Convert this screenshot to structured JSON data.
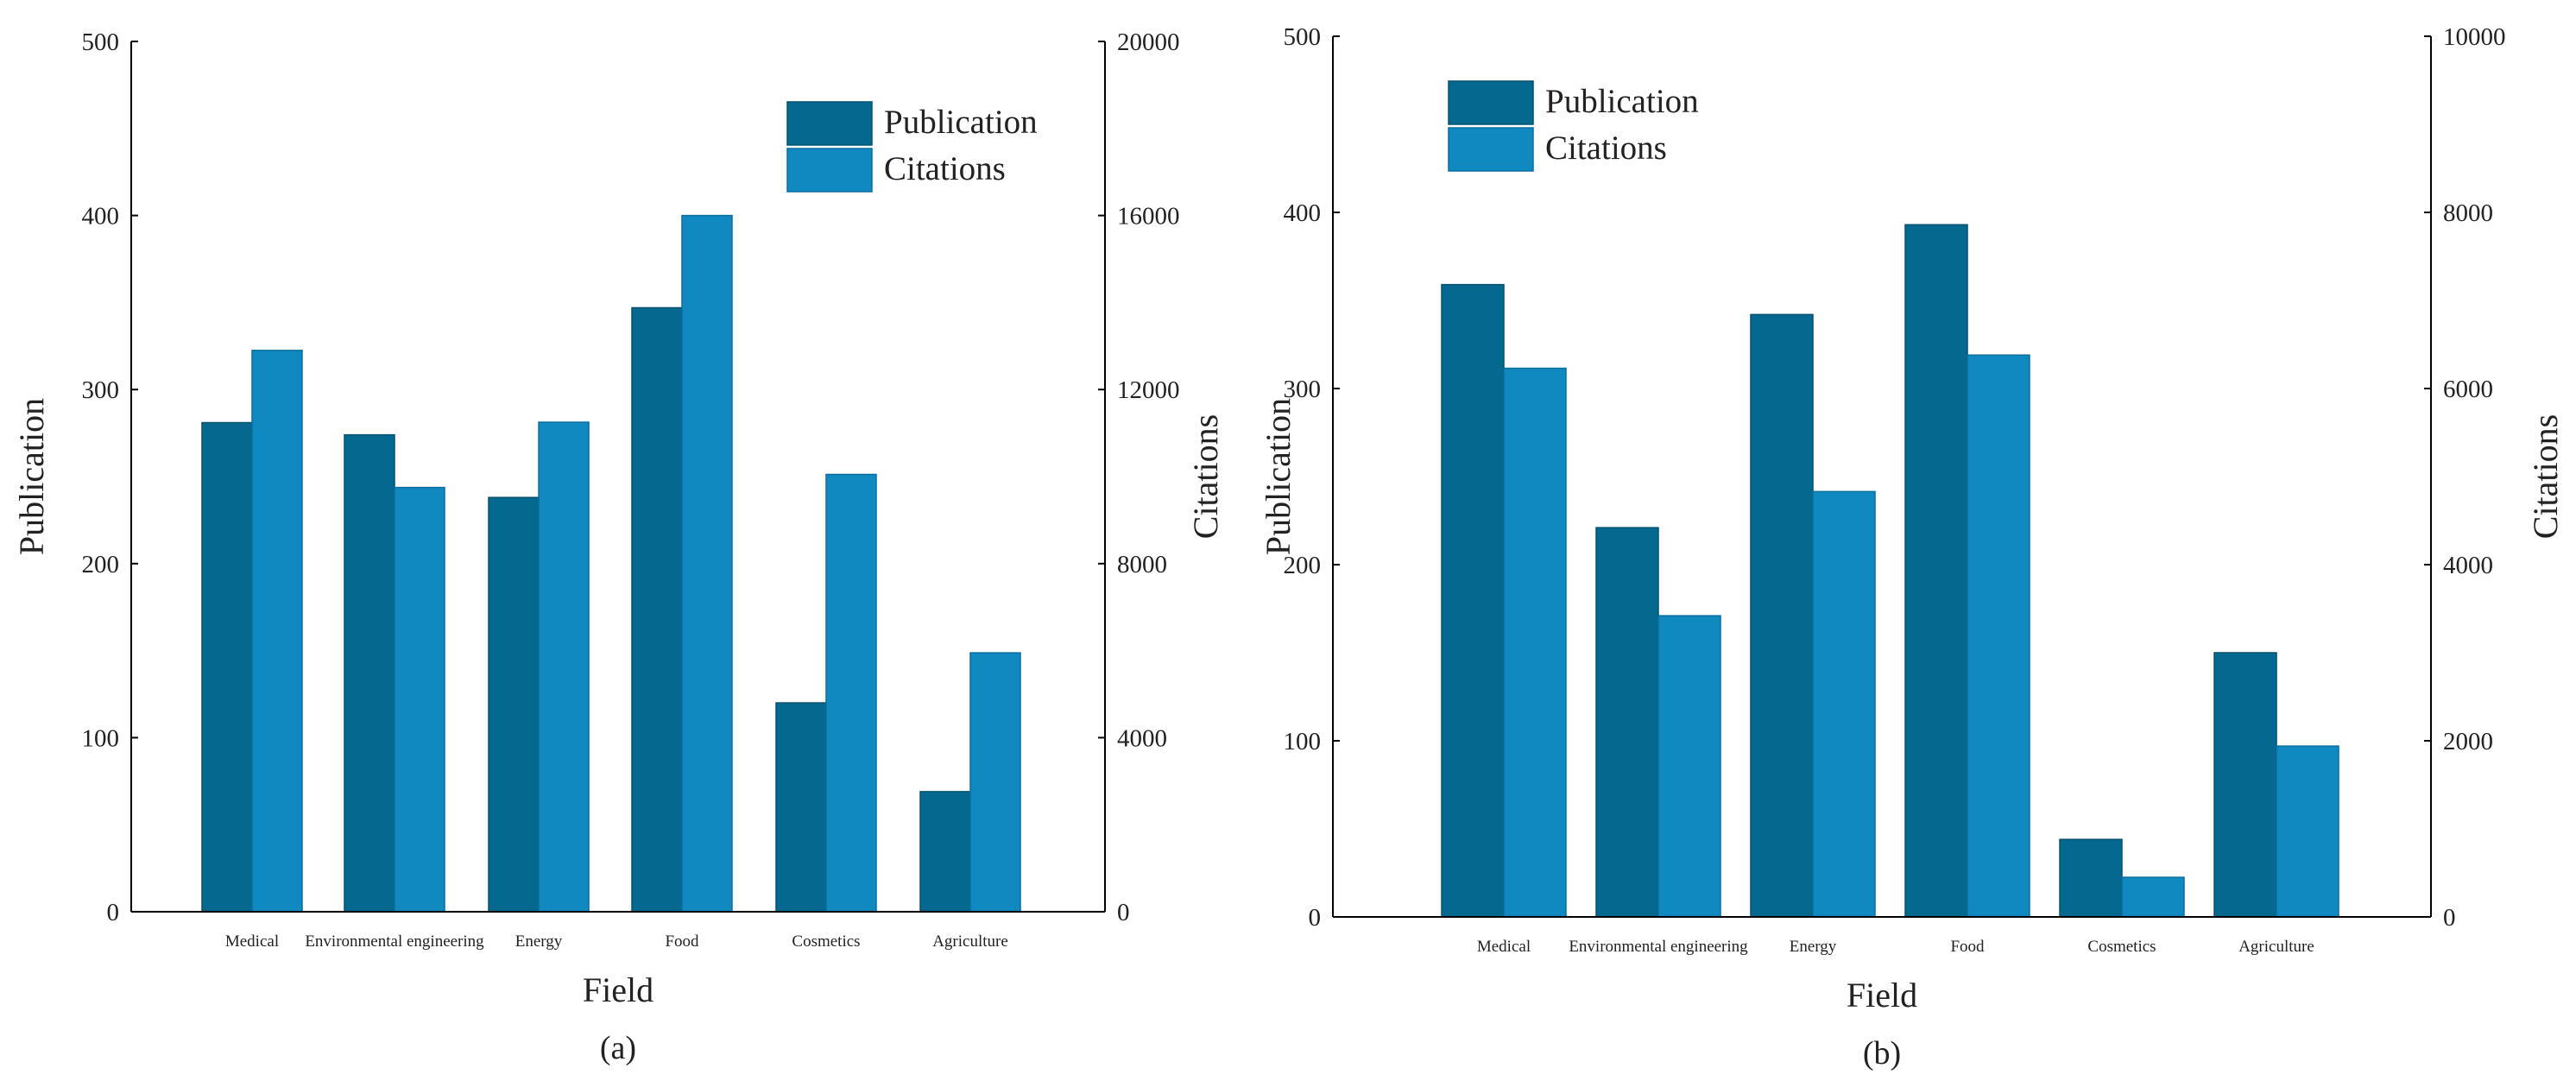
{
  "colors": {
    "publication": "#05688F",
    "citations": "#1088C0",
    "publication_edge": "#045070",
    "citations_edge": "#0B6E9E"
  },
  "chart_data": [
    {
      "type": "bar",
      "caption": "(a)",
      "categories": [
        "Medical",
        "Environmental engineering",
        "Energy",
        "Food",
        "Cosmetics",
        "Agriculture"
      ],
      "xlabel": "Field",
      "ylabel": "Publication",
      "y2label": "Citations",
      "ylim": [
        0,
        500
      ],
      "y2lim": [
        0,
        20000
      ],
      "yticks": [
        "0",
        "100",
        "200",
        "300",
        "400",
        "500"
      ],
      "y2ticks": [
        "0",
        "4000",
        "8000",
        "12000",
        "16000",
        "20000"
      ],
      "legend_position": "top-right",
      "grid": false,
      "series": [
        {
          "name": "Publication",
          "axis": "left",
          "values": [
            281,
            274,
            238,
            347,
            120,
            69
          ]
        },
        {
          "name": "Citations",
          "axis": "right",
          "values": [
            12900,
            9750,
            11250,
            16000,
            10050,
            5950
          ]
        }
      ]
    },
    {
      "type": "bar",
      "caption": "(b)",
      "categories": [
        "Medical",
        "Environmental engineering",
        "Energy",
        "Food",
        "Cosmetics",
        "Agriculture"
      ],
      "xlabel": "Field",
      "ylabel": "Publication",
      "y2label": "Citations",
      "ylim": [
        0,
        500
      ],
      "y2lim": [
        0,
        10000
      ],
      "yticks": [
        "0",
        "100",
        "200",
        "300",
        "400",
        "500"
      ],
      "y2ticks": [
        "0",
        "2000",
        "4000",
        "6000",
        "8000",
        "10000"
      ],
      "legend_position": "top-left",
      "grid": false,
      "series": [
        {
          "name": "Publication",
          "axis": "left",
          "values": [
            359,
            221,
            342,
            393,
            44,
            150
          ]
        },
        {
          "name": "Citations",
          "axis": "right",
          "values": [
            6230,
            3420,
            4830,
            6380,
            450,
            1940
          ]
        }
      ]
    }
  ]
}
